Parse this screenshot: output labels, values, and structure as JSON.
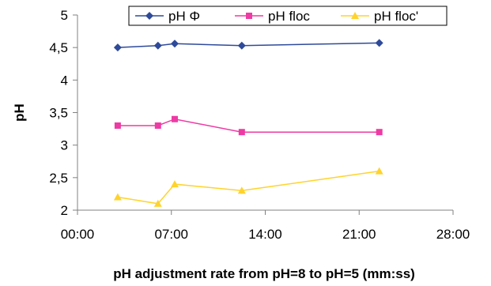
{
  "chart_data": {
    "type": "line",
    "title": "",
    "xlabel": "pH adjustment rate from pH=8 to pH=5 (mm:ss)",
    "ylabel": "pH",
    "x_ticks": [
      "00:00",
      "07:00",
      "14:00",
      "21:00",
      "28:00"
    ],
    "y_ticks": [
      "2",
      "2,5",
      "3",
      "3,5",
      "4",
      "4,5",
      "5"
    ],
    "x_unit": "seconds",
    "xlim": [
      0,
      1680
    ],
    "ylim": [
      2,
      5
    ],
    "grid": false,
    "legend_position": "top-right",
    "series": [
      {
        "name": "pH Φ",
        "color": "#2e4a9a",
        "marker": "diamond",
        "x": [
          180,
          360,
          435,
          735,
          1350
        ],
        "values": [
          4.5,
          4.53,
          4.56,
          4.53,
          4.57
        ]
      },
      {
        "name": "pH floc",
        "color": "#ee3aa4",
        "marker": "square",
        "x": [
          180,
          360,
          435,
          735,
          1350
        ],
        "values": [
          3.3,
          3.3,
          3.4,
          3.2,
          3.2
        ]
      },
      {
        "name": "pH floc'",
        "color": "#ffd32c",
        "marker": "triangle",
        "x": [
          180,
          360,
          435,
          735,
          1350
        ],
        "values": [
          2.2,
          2.1,
          2.4,
          2.3,
          2.6
        ]
      }
    ]
  }
}
